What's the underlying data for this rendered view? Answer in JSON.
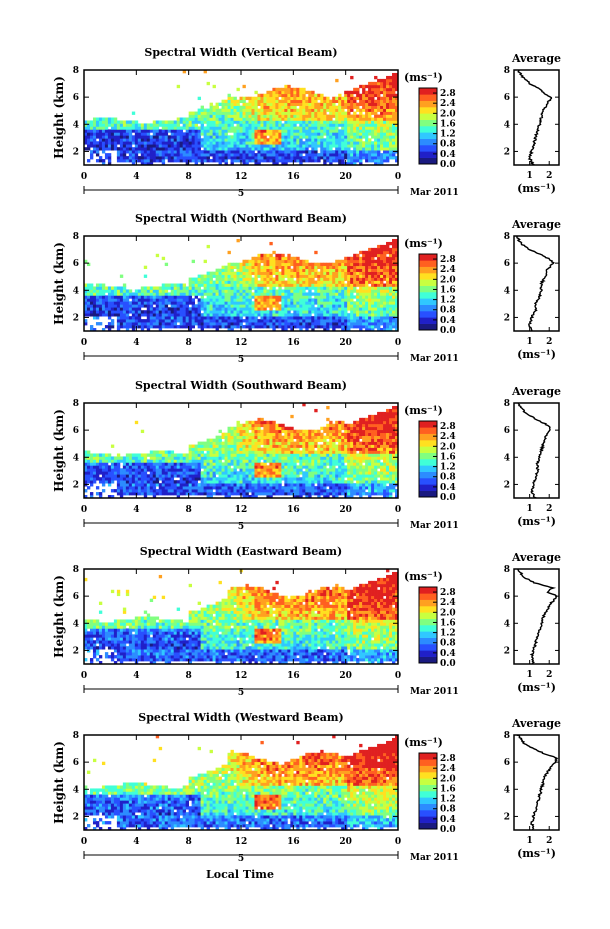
{
  "figure": {
    "xlabel": "Local Time",
    "date_label": "Mar 2011",
    "day_label": "5"
  },
  "colorbar": {
    "unit": "(ms⁻¹)",
    "ticks": [
      "0.0",
      "0.4",
      "0.8",
      "1.2",
      "1.6",
      "2.0",
      "2.4",
      "2.8"
    ],
    "range": [
      0,
      3.0
    ],
    "colors": [
      "#1a1a80",
      "#2020c8",
      "#2850ff",
      "#2c8cff",
      "#30c8ff",
      "#40ffd8",
      "#80ff80",
      "#c8ff40",
      "#ffe020",
      "#ffa020",
      "#ff6020",
      "#e02020"
    ]
  },
  "chart_data": [
    {
      "type": "heatmap",
      "title": "Spectral Width (Vertical Beam)",
      "ylabel": "Height (km)",
      "x_ticks": [
        "0",
        "4",
        "8",
        "12",
        "16",
        "20",
        "0"
      ],
      "y_ticks": [
        "2",
        "4",
        "6",
        "8"
      ],
      "xlim": [
        0,
        24
      ],
      "ylim": [
        1,
        8
      ],
      "profile": {
        "title": "Average",
        "xlabel": "(ms⁻¹)",
        "x_ticks": [
          "1",
          "2"
        ],
        "y_ticks": [
          "2",
          "4",
          "6",
          "8"
        ],
        "height_km": [
          1.0,
          1.5,
          2.0,
          2.5,
          3.0,
          3.5,
          4.0,
          4.5,
          5.0,
          5.5,
          6.0,
          6.3,
          6.6,
          7.0,
          7.4,
          8.0
        ],
        "width_ms": [
          1.2,
          1.0,
          1.1,
          1.2,
          1.3,
          1.4,
          1.5,
          1.6,
          1.7,
          1.9,
          2.1,
          1.7,
          1.5,
          1.0,
          0.7,
          0.4
        ]
      }
    },
    {
      "type": "heatmap",
      "title": "Spectral Width (Northward Beam)",
      "ylabel": "Height (km)",
      "x_ticks": [
        "0",
        "4",
        "8",
        "12",
        "16",
        "20",
        "0"
      ],
      "y_ticks": [
        "2",
        "4",
        "6",
        "8"
      ],
      "xlim": [
        0,
        24
      ],
      "ylim": [
        1,
        8
      ],
      "profile": {
        "title": "Average",
        "xlabel": "(ms⁻¹)",
        "x_ticks": [
          "1",
          "2"
        ],
        "y_ticks": [
          "2",
          "4",
          "6",
          "8"
        ],
        "height_km": [
          1.0,
          1.5,
          2.0,
          2.5,
          3.0,
          3.5,
          4.0,
          4.5,
          5.0,
          5.5,
          6.0,
          6.3,
          6.6,
          7.0,
          7.4,
          8.0
        ],
        "width_ms": [
          1.1,
          1.0,
          1.1,
          1.3,
          1.3,
          1.5,
          1.6,
          1.6,
          1.8,
          1.9,
          2.2,
          2.0,
          1.6,
          1.0,
          0.6,
          0.3
        ]
      }
    },
    {
      "type": "heatmap",
      "title": "Spectral Width (Southward Beam)",
      "ylabel": "Height (km)",
      "x_ticks": [
        "0",
        "4",
        "8",
        "12",
        "16",
        "20",
        "0"
      ],
      "y_ticks": [
        "2",
        "4",
        "6",
        "8"
      ],
      "xlim": [
        0,
        24
      ],
      "ylim": [
        1,
        8
      ],
      "profile": {
        "title": "Average",
        "xlabel": "(ms⁻¹)",
        "x_ticks": [
          "1",
          "2"
        ],
        "y_ticks": [
          "2",
          "4",
          "6",
          "8"
        ],
        "height_km": [
          1.0,
          1.5,
          2.0,
          2.5,
          3.0,
          3.5,
          4.0,
          4.5,
          5.0,
          5.5,
          6.0,
          6.3,
          6.6,
          7.0,
          7.4,
          8.0
        ],
        "width_ms": [
          1.3,
          1.1,
          1.2,
          1.3,
          1.4,
          1.4,
          1.5,
          1.6,
          1.7,
          1.8,
          2.0,
          2.0,
          1.6,
          1.1,
          0.7,
          0.4
        ]
      }
    },
    {
      "type": "heatmap",
      "title": "Spectral Width (Eastward Beam)",
      "ylabel": "Height (km)",
      "x_ticks": [
        "0",
        "4",
        "8",
        "12",
        "16",
        "20",
        "0"
      ],
      "y_ticks": [
        "2",
        "4",
        "6",
        "8"
      ],
      "xlim": [
        0,
        24
      ],
      "ylim": [
        1,
        8
      ],
      "profile": {
        "title": "Average",
        "xlabel": "(ms⁻¹)",
        "x_ticks": [
          "1",
          "2"
        ],
        "y_ticks": [
          "2",
          "4",
          "6",
          "8"
        ],
        "height_km": [
          1.0,
          1.5,
          2.0,
          2.5,
          3.0,
          3.5,
          4.0,
          4.5,
          5.0,
          5.5,
          6.0,
          6.3,
          6.6,
          7.0,
          7.4,
          8.0
        ],
        "width_ms": [
          1.2,
          1.1,
          1.2,
          1.3,
          1.4,
          1.5,
          1.6,
          1.7,
          1.9,
          2.1,
          2.4,
          1.9,
          2.2,
          1.2,
          0.7,
          0.4
        ]
      }
    },
    {
      "type": "heatmap",
      "title": "Spectral Width (Westward Beam)",
      "ylabel": "Height (km)",
      "x_ticks": [
        "0",
        "4",
        "8",
        "12",
        "16",
        "20",
        "0"
      ],
      "y_ticks": [
        "2",
        "4",
        "6",
        "8"
      ],
      "xlim": [
        0,
        24
      ],
      "ylim": [
        1,
        8
      ],
      "profile": {
        "title": "Average",
        "xlabel": "(ms⁻¹)",
        "x_ticks": [
          "1",
          "2"
        ],
        "y_ticks": [
          "2",
          "4",
          "6",
          "8"
        ],
        "height_km": [
          1.0,
          1.5,
          2.0,
          2.5,
          3.0,
          3.5,
          4.0,
          4.5,
          5.0,
          5.5,
          6.0,
          6.3,
          6.6,
          7.0,
          7.4,
          8.0
        ],
        "width_ms": [
          1.2,
          1.1,
          1.2,
          1.3,
          1.4,
          1.5,
          1.6,
          1.7,
          1.8,
          2.0,
          2.3,
          2.4,
          1.8,
          1.2,
          0.7,
          0.4
        ]
      }
    }
  ]
}
